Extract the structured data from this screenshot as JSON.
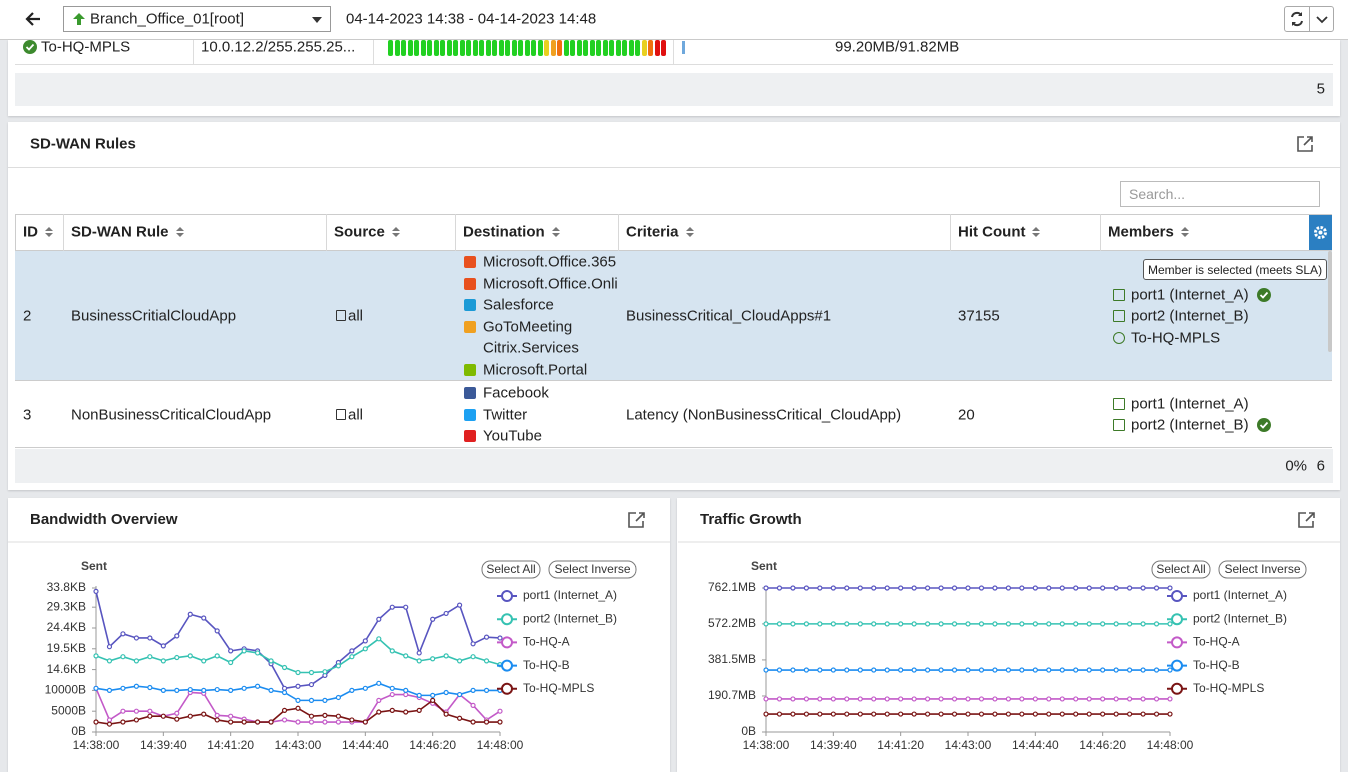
{
  "header": {
    "device": "Branch_Office_01[root]",
    "time_range": "04-14-2023 14:38 - 04-14-2023 14:48"
  },
  "interfaces": {
    "rows": [
      {
        "name": "To-HQ-MPLS",
        "ip": "10.0.12.2/255.255.25...",
        "usage": "99.20MB/91.82MB"
      }
    ],
    "total": 5
  },
  "sdwan_rules": {
    "title": "SD-WAN Rules",
    "search_placeholder": "Search...",
    "columns": [
      "ID",
      "SD-WAN Rule",
      "Source",
      "Destination",
      "Criteria",
      "Hit Count",
      "Members"
    ],
    "rows": [
      {
        "id": 2,
        "rule": "BusinessCritialCloudApp",
        "source": "all",
        "destination": [
          "Microsoft.Office.365",
          "Microsoft.Office.Onli",
          "Salesforce",
          "GoToMeeting",
          "Citrix.Services",
          "Microsoft.Portal"
        ],
        "criteria": "BusinessCritical_CloudApps#1",
        "hit_count": 37155,
        "members": [
          "port1 (Internet_A)",
          "port2 (Internet_B)",
          "To-HQ-MPLS"
        ]
      },
      {
        "id": 3,
        "rule": "NonBusinessCriticalCloudApp",
        "source": "all",
        "destination": [
          "Facebook",
          "Twitter",
          "YouTube"
        ],
        "criteria": "Latency (NonBusinessCritical_CloudApp)",
        "hit_count": 20,
        "members": [
          "port1 (Internet_A)",
          "port2 (Internet_B)"
        ]
      }
    ],
    "tooltip": "Member is selected (meets SLA)",
    "footer": {
      "percent": "0%",
      "total": 6
    }
  },
  "chart_data": [
    {
      "type": "line",
      "title": "Bandwidth Overview",
      "y_label": "Sent",
      "buttons": [
        "Select All",
        "Select Inverse"
      ],
      "legend": "right",
      "x": [
        "14:38:00",
        "14:38:20",
        "14:38:40",
        "14:39:00",
        "14:39:20",
        "14:39:40",
        "14:40:00",
        "14:40:20",
        "14:40:40",
        "14:41:00",
        "14:41:20",
        "14:41:40",
        "14:42:00",
        "14:42:20",
        "14:42:40",
        "14:43:00",
        "14:43:20",
        "14:43:40",
        "14:44:00",
        "14:44:20",
        "14:44:40",
        "14:45:00",
        "14:45:20",
        "14:45:40",
        "14:46:00",
        "14:46:20",
        "14:46:40",
        "14:47:00",
        "14:47:20",
        "14:47:40",
        "14:48:00"
      ],
      "xlim": [
        "14:38:00",
        "14:48:00"
      ],
      "xticks": [
        "14:38:00",
        "14:39:40",
        "14:41:20",
        "14:43:00",
        "14:44:40",
        "14:46:20",
        "14:48:00"
      ],
      "ylim": [
        0,
        34611
      ],
      "yticks": [
        {
          "value": 0,
          "label": "0B"
        },
        {
          "value": 5000,
          "label": "5000B"
        },
        {
          "value": 10000,
          "label": "10000B"
        },
        {
          "value": 15000,
          "label": "14.6KB"
        },
        {
          "value": 20000,
          "label": "19.5KB"
        },
        {
          "value": 25000,
          "label": "24.4KB"
        },
        {
          "value": 30000,
          "label": "29.3KB"
        },
        {
          "value": 34611,
          "label": "33.8KB"
        }
      ],
      "series": [
        {
          "name": "port1 (Internet_A)",
          "color": "#5855c0",
          "values": [
            33800,
            20500,
            23600,
            22600,
            22600,
            20700,
            23100,
            28300,
            27400,
            24300,
            19500,
            20000,
            19500,
            16400,
            10500,
            11000,
            11400,
            13600,
            16700,
            19500,
            21900,
            27100,
            30000,
            30000,
            19000,
            27100,
            28500,
            30500,
            21200,
            22800,
            22600
          ]
        },
        {
          "name": "port2 (Internet_B)",
          "color": "#35c2b2",
          "values": [
            18300,
            17100,
            18100,
            17100,
            18100,
            17100,
            17900,
            18300,
            17100,
            18300,
            16700,
            19500,
            19000,
            17100,
            15500,
            14300,
            14300,
            14500,
            15900,
            18100,
            20000,
            22400,
            19500,
            18300,
            17100,
            17600,
            18300,
            17100,
            18100,
            17100,
            16200
          ]
        },
        {
          "name": "To-HQ-A",
          "color": "#c35ac8",
          "values": [
            10500,
            2900,
            5000,
            5000,
            5000,
            3800,
            4500,
            9500,
            9300,
            4000,
            3800,
            3100,
            2400,
            2400,
            2900,
            2400,
            2400,
            2400,
            2400,
            2400,
            2400,
            7600,
            9000,
            9000,
            8300,
            6900,
            4800,
            9000,
            6400,
            2900,
            5000
          ]
        },
        {
          "name": "To-HQ-B",
          "color": "#1b8cf0",
          "values": [
            10500,
            10000,
            10500,
            11000,
            10700,
            10000,
            10000,
            10200,
            10000,
            10200,
            10000,
            10500,
            11000,
            10000,
            9500,
            7600,
            7600,
            7600,
            8300,
            10000,
            10500,
            11700,
            10500,
            10000,
            8800,
            8800,
            9500,
            9000,
            10000,
            10000,
            10000
          ]
        },
        {
          "name": "To-HQ-MPLS",
          "color": "#7a1414",
          "values": [
            2400,
            1900,
            2400,
            2900,
            3800,
            3800,
            3100,
            3800,
            4300,
            2900,
            2400,
            2400,
            2400,
            2400,
            5200,
            5700,
            3800,
            4000,
            3800,
            2900,
            2400,
            4800,
            5200,
            4800,
            5200,
            7600,
            4300,
            3300,
            2400,
            2400,
            2400
          ]
        }
      ]
    },
    {
      "type": "line",
      "title": "Traffic Growth",
      "y_label": "Sent",
      "buttons": [
        "Select All",
        "Select Inverse"
      ],
      "legend": "right",
      "x": [
        "14:38:00",
        "14:38:20",
        "14:38:40",
        "14:39:00",
        "14:39:20",
        "14:39:40",
        "14:40:00",
        "14:40:20",
        "14:40:40",
        "14:41:00",
        "14:41:20",
        "14:41:40",
        "14:42:00",
        "14:42:20",
        "14:42:40",
        "14:43:00",
        "14:43:20",
        "14:43:40",
        "14:44:00",
        "14:44:20",
        "14:44:40",
        "14:45:00",
        "14:45:20",
        "14:45:40",
        "14:46:00",
        "14:46:20",
        "14:46:40",
        "14:47:00",
        "14:47:20",
        "14:47:40",
        "14:48:00"
      ],
      "xlim": [
        "14:38:00",
        "14:48:00"
      ],
      "xticks": [
        "14:38:00",
        "14:39:40",
        "14:41:20",
        "14:43:00",
        "14:44:40",
        "14:46:20",
        "14:48:00"
      ],
      "ylim": [
        0,
        762.1
      ],
      "yticks": [
        {
          "value": 0,
          "label": "0B"
        },
        {
          "value": 190.7,
          "label": "190.7MB"
        },
        {
          "value": 381.5,
          "label": "381.5MB"
        },
        {
          "value": 572.2,
          "label": "572.2MB"
        },
        {
          "value": 762.1,
          "label": "762.1MB"
        }
      ],
      "series": [
        {
          "name": "port1 (Internet_A)",
          "color": "#5855c0",
          "values": [
            762.1,
            762.1,
            762.1,
            762.1,
            762.1,
            762.1,
            762.1,
            762.1,
            762.1,
            762.1,
            762.1,
            762.1,
            762.1,
            762.1,
            762.1,
            762.1,
            762.1,
            762.1,
            762.1,
            762.1,
            762.1,
            762.1,
            762.1,
            762.1,
            762.1,
            762.1,
            762.1,
            762.1,
            762.1,
            762.1,
            762.1
          ]
        },
        {
          "name": "port2 (Internet_B)",
          "color": "#35c2b2",
          "values": [
            572.2,
            572.2,
            572.2,
            572.2,
            572.2,
            572.2,
            572.2,
            572.2,
            572.2,
            572.2,
            572.2,
            572.2,
            572.2,
            572.2,
            572.2,
            572.2,
            572.2,
            572.2,
            572.2,
            572.2,
            572.2,
            572.2,
            572.2,
            572.2,
            572.2,
            572.2,
            572.2,
            572.2,
            572.2,
            572.2,
            572.2
          ]
        },
        {
          "name": "To-HQ-A",
          "color": "#c35ac8",
          "values": [
            175,
            175,
            175,
            175,
            175,
            175,
            175,
            175,
            175,
            175,
            175,
            175,
            175,
            175,
            175,
            175,
            175,
            175,
            175,
            175,
            175,
            175,
            175,
            175,
            175,
            175,
            175,
            175,
            175,
            175,
            175
          ]
        },
        {
          "name": "To-HQ-B",
          "color": "#1b8cf0",
          "values": [
            328,
            328,
            328,
            328,
            328,
            328,
            328,
            328,
            328,
            328,
            328,
            328,
            328,
            328,
            328,
            328,
            328,
            328,
            328,
            328,
            328,
            328,
            328,
            328,
            328,
            328,
            328,
            328,
            328,
            328,
            328
          ]
        },
        {
          "name": "To-HQ-MPLS",
          "color": "#7a1414",
          "values": [
            95,
            95,
            95,
            95,
            95,
            95,
            95,
            95,
            95,
            95,
            95,
            95,
            95,
            95,
            95,
            95,
            95,
            95,
            95,
            95,
            95,
            95,
            95,
            95,
            95,
            95,
            95,
            95,
            95,
            95,
            95
          ]
        }
      ]
    }
  ]
}
